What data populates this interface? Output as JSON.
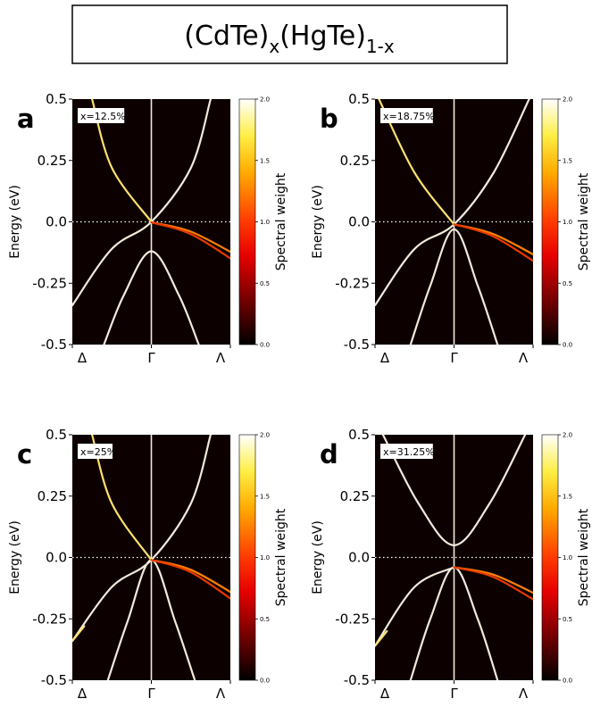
{
  "title": {
    "base1": "(CdTe)",
    "sub1": "x",
    "base2": "(HgTe)",
    "sub2": "1-x"
  },
  "chart_data": [
    {
      "type": "line",
      "panel": "a",
      "label": "x=12.5%",
      "ylabel": "Energy (eV)",
      "ylim": [
        -0.5,
        0.5
      ],
      "y_ticks": [
        "-0.5",
        "-0.25",
        "0.0",
        "0.25",
        "0.5"
      ],
      "x_ticks": [
        "Δ",
        "Γ",
        "Λ"
      ],
      "reference_line": 0.0,
      "colorbar": {
        "label": "Spectral weight",
        "range": [
          0.0,
          2.0
        ],
        "ticks": [
          "0.0",
          "0.5",
          "1.0",
          "1.5",
          "2.0"
        ]
      },
      "series": [
        {
          "color": "#f2eadc",
          "points": [
            [
              -1.0,
              -0.34
            ],
            [
              -0.5,
              -0.11
            ],
            [
              0.0,
              0.0
            ],
            [
              0.5,
              0.22
            ],
            [
              0.75,
              0.5
            ]
          ]
        },
        {
          "color": "#ffe070",
          "points": [
            [
              -0.75,
              0.5
            ],
            [
              -0.5,
              0.22
            ],
            [
              0.0,
              0.0
            ]
          ]
        },
        {
          "color": "#f2eadc",
          "points": [
            [
              -0.6,
              -0.5
            ],
            [
              -0.35,
              -0.3
            ],
            [
              0.0,
              -0.12
            ],
            [
              0.35,
              -0.3
            ],
            [
              0.6,
              -0.5
            ]
          ]
        },
        {
          "color": "#ff8000",
          "points": [
            [
              0.0,
              -0.002
            ],
            [
              0.5,
              -0.04
            ],
            [
              1.1,
              -0.14
            ]
          ]
        },
        {
          "color": "#e83a00",
          "points": [
            [
              0.0,
              -0.002
            ],
            [
              0.5,
              -0.05
            ],
            [
              1.1,
              -0.17
            ]
          ]
        }
      ]
    },
    {
      "type": "line",
      "panel": "b",
      "label": "x=18.75%",
      "ylabel": "Energy (eV)",
      "ylim": [
        -0.5,
        0.5
      ],
      "y_ticks": [
        "-0.5",
        "-0.25",
        "0.0",
        "0.25",
        "0.5"
      ],
      "x_ticks": [
        "Δ",
        "Γ",
        "Λ"
      ],
      "reference_line": 0.0,
      "colorbar": {
        "label": "Spectral weight",
        "range": [
          0.0,
          2.0
        ],
        "ticks": [
          "0.0",
          "0.5",
          "1.0",
          "1.5",
          "2.0"
        ]
      },
      "series": [
        {
          "color": "#f2eadc",
          "points": [
            [
              -1.0,
              -0.34
            ],
            [
              -0.5,
              -0.11
            ],
            [
              0.0,
              -0.01
            ],
            [
              0.5,
              0.2
            ],
            [
              0.95,
              0.5
            ]
          ]
        },
        {
          "color": "#ffe070",
          "points": [
            [
              -0.95,
              0.5
            ],
            [
              -0.5,
              0.2
            ],
            [
              0.0,
              -0.01
            ]
          ]
        },
        {
          "color": "#f2eadc",
          "points": [
            [
              -0.55,
              -0.5
            ],
            [
              -0.3,
              -0.26
            ],
            [
              0.0,
              -0.03
            ],
            [
              0.3,
              -0.26
            ],
            [
              0.55,
              -0.5
            ]
          ]
        },
        {
          "color": "#ff8000",
          "points": [
            [
              0.0,
              -0.01
            ],
            [
              0.5,
              -0.05
            ],
            [
              1.1,
              -0.15
            ]
          ]
        },
        {
          "color": "#e83a00",
          "points": [
            [
              0.0,
              -0.01
            ],
            [
              0.5,
              -0.06
            ],
            [
              1.1,
              -0.18
            ]
          ]
        }
      ]
    },
    {
      "type": "line",
      "panel": "c",
      "label": "x=25%",
      "ylabel": "Energy (eV)",
      "ylim": [
        -0.5,
        0.5
      ],
      "y_ticks": [
        "-0.5",
        "-0.25",
        "0.0",
        "0.25",
        "0.5"
      ],
      "x_ticks": [
        "Δ",
        "Γ",
        "Λ"
      ],
      "reference_line": 0.0,
      "colorbar": {
        "label": "Spectral weight",
        "range": [
          0.0,
          2.0
        ],
        "ticks": [
          "0.0",
          "0.5",
          "1.0",
          "1.5",
          "2.0"
        ]
      },
      "series": [
        {
          "color": "#f2eadc",
          "points": [
            [
              -1.0,
              -0.34
            ],
            [
              -0.5,
              -0.12
            ],
            [
              0.0,
              -0.01
            ],
            [
              0.5,
              0.22
            ],
            [
              0.75,
              0.5
            ]
          ]
        },
        {
          "color": "#ffe070",
          "points": [
            [
              -0.75,
              0.5
            ],
            [
              -0.5,
              0.22
            ],
            [
              0.0,
              -0.01
            ]
          ]
        },
        {
          "color": "#ffe070",
          "points": [
            [
              -1.0,
              -0.34
            ],
            [
              -0.85,
              -0.28
            ]
          ]
        },
        {
          "color": "#f2eadc",
          "points": [
            [
              -0.55,
              -0.5
            ],
            [
              -0.3,
              -0.26
            ],
            [
              0.0,
              -0.01
            ],
            [
              0.3,
              -0.26
            ],
            [
              0.55,
              -0.5
            ]
          ]
        },
        {
          "color": "#ff8000",
          "points": [
            [
              0.0,
              -0.01
            ],
            [
              0.5,
              -0.05
            ],
            [
              1.1,
              -0.16
            ]
          ]
        },
        {
          "color": "#e83a00",
          "points": [
            [
              0.0,
              -0.01
            ],
            [
              0.5,
              -0.06
            ],
            [
              1.1,
              -0.19
            ]
          ]
        }
      ]
    },
    {
      "type": "line",
      "panel": "d",
      "label": "x=31.25%",
      "ylabel": "Energy (eV)",
      "ylim": [
        -0.5,
        0.5
      ],
      "y_ticks": [
        "-0.5",
        "-0.25",
        "0.0",
        "0.25",
        "0.5"
      ],
      "x_ticks": [
        "Δ",
        "Γ",
        "Λ"
      ],
      "reference_line": 0.0,
      "colorbar": {
        "label": "Spectral weight",
        "range": [
          0.0,
          2.0
        ],
        "ticks": [
          "0.0",
          "0.5",
          "1.0",
          "1.5",
          "2.0"
        ]
      },
      "series": [
        {
          "color": "#f2eadc",
          "points": [
            [
              -1.0,
              -0.36
            ],
            [
              -0.5,
              -0.12
            ],
            [
              0.0,
              -0.04
            ]
          ]
        },
        {
          "color": "#f2eadc",
          "points": [
            [
              -0.9,
              0.5
            ],
            [
              -0.45,
              0.22
            ],
            [
              0.0,
              0.05
            ],
            [
              0.45,
              0.22
            ],
            [
              0.9,
              0.5
            ]
          ]
        },
        {
          "color": "#ffe070",
          "points": [
            [
              -1.0,
              -0.36
            ],
            [
              -0.85,
              -0.3
            ]
          ]
        },
        {
          "color": "#f2eadc",
          "points": [
            [
              -0.55,
              -0.5
            ],
            [
              -0.3,
              -0.25
            ],
            [
              0.0,
              -0.04
            ],
            [
              0.3,
              -0.25
            ],
            [
              0.55,
              -0.5
            ]
          ]
        },
        {
          "color": "#ff8000",
          "points": [
            [
              0.0,
              -0.04
            ],
            [
              0.5,
              -0.07
            ],
            [
              1.1,
              -0.16
            ]
          ]
        },
        {
          "color": "#e83a00",
          "points": [
            [
              0.0,
              -0.04
            ],
            [
              0.5,
              -0.08
            ],
            [
              1.1,
              -0.19
            ]
          ]
        }
      ]
    }
  ]
}
